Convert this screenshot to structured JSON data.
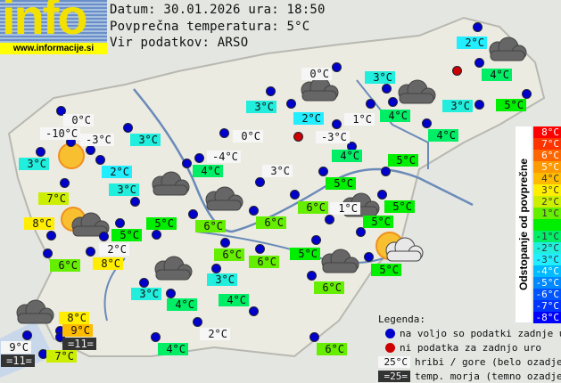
{
  "header": {
    "logo_text": "info",
    "url": "www.informacije.si",
    "date_line": "Datum: 30.01.2026 ura: 18:50",
    "avg_line": "Povprečna temperatura: 5°C",
    "source_line": "Vir podatkov: ARSO"
  },
  "average_temperature": 5,
  "colors": {
    "mountain_bg": "#f6f6f6",
    "sea_bg": "#333333",
    "dot_ok": "#0000cc",
    "dot_missing": "#cc0000"
  },
  "stations": [
    {
      "t": "2°C",
      "k": "v"
    },
    {
      "t": "4°C",
      "k": "v"
    },
    {
      "t": "5°C",
      "k": "v"
    },
    {
      "t": "3°C",
      "k": "v"
    },
    {
      "t": "0°C",
      "k": "m"
    },
    {
      "t": "3°C",
      "k": "v"
    },
    {
      "t": "4°C",
      "k": "v"
    },
    {
      "t": "1°C",
      "k": "m"
    },
    {
      "t": "2°C",
      "k": "v"
    },
    {
      "t": "3°C",
      "k": "v"
    },
    {
      "t": "-3°C",
      "k": "m"
    },
    {
      "t": "4°C",
      "k": "v"
    },
    {
      "t": "4°C",
      "k": "v"
    },
    {
      "t": "5°C",
      "k": "v"
    },
    {
      "t": "5°C",
      "k": "v"
    },
    {
      "t": "6°C",
      "k": "v"
    },
    {
      "t": "5°C",
      "k": "v"
    },
    {
      "t": "1°C",
      "k": "m"
    },
    {
      "t": "5°C",
      "k": "v"
    },
    {
      "t": "3°C",
      "k": "m"
    },
    {
      "t": "6°C",
      "k": "v"
    },
    {
      "t": "5°C",
      "k": "v"
    },
    {
      "t": "6°C",
      "k": "v"
    },
    {
      "t": "5°C",
      "k": "v"
    },
    {
      "t": "6°C",
      "k": "v"
    },
    {
      "t": "0°C",
      "k": "m"
    },
    {
      "t": "-10°C",
      "k": "m"
    },
    {
      "t": "-3°C",
      "k": "m"
    },
    {
      "t": "2°C",
      "k": "v"
    },
    {
      "t": "3°C",
      "k": "v"
    },
    {
      "t": "3°C",
      "k": "v"
    },
    {
      "t": "0°C",
      "k": "m"
    },
    {
      "t": "-4°C",
      "k": "m"
    },
    {
      "t": "4°C",
      "k": "v"
    },
    {
      "t": "7°C",
      "k": "v"
    },
    {
      "t": "3°C",
      "k": "v"
    },
    {
      "t": "6°C",
      "k": "v"
    },
    {
      "t": "8°C",
      "k": "v"
    },
    {
      "t": "5°C",
      "k": "v"
    },
    {
      "t": "5°C",
      "k": "v"
    },
    {
      "t": "2°C",
      "k": "m"
    },
    {
      "t": "6°C",
      "k": "v"
    },
    {
      "t": "6°C",
      "k": "v"
    },
    {
      "t": "8°C",
      "k": "v"
    },
    {
      "t": "3°C",
      "k": "v"
    },
    {
      "t": "3°C",
      "k": "v"
    },
    {
      "t": "4°C",
      "k": "v"
    },
    {
      "t": "4°C",
      "k": "v"
    },
    {
      "t": "2°C",
      "k": "m"
    },
    {
      "t": "4°C",
      "k": "v"
    },
    {
      "t": "6°C",
      "k": "v"
    },
    {
      "t": "8°C",
      "k": "v"
    },
    {
      "t": "9°C",
      "k": "v"
    },
    {
      "t": "=11=",
      "k": "s"
    },
    {
      "t": "9°C",
      "k": "m"
    },
    {
      "t": "=11=",
      "k": "s"
    },
    {
      "t": "7°C",
      "k": "v"
    }
  ],
  "scale": {
    "title": "Odstopanje od povprečne temperature:",
    "steps": [
      {
        "label": "8°C",
        "color": "#ff0000"
      },
      {
        "label": "7°C",
        "color": "#ff3300"
      },
      {
        "label": "6°C",
        "color": "#ff6600"
      },
      {
        "label": "5°C",
        "color": "#ff9900"
      },
      {
        "label": "4°C",
        "color": "#ffbb00"
      },
      {
        "label": "3°C",
        "color": "#ffee00"
      },
      {
        "label": "2°C",
        "color": "#ccee00"
      },
      {
        "label": "1°C",
        "color": "#66ee00"
      },
      {
        "label": "",
        "color": "#00ee00"
      },
      {
        "label": "-1°C",
        "color": "#00ee66"
      },
      {
        "label": "-2°C",
        "color": "#22eedd"
      },
      {
        "label": "-3°C",
        "color": "#22eeff"
      },
      {
        "label": "-4°C",
        "color": "#00bbff"
      },
      {
        "label": "-5°C",
        "color": "#0088ff"
      },
      {
        "label": "-6°C",
        "color": "#0055ff"
      },
      {
        "label": "-7°C",
        "color": "#0033ff"
      },
      {
        "label": "-8°C",
        "color": "#0000ff"
      }
    ]
  },
  "legend": {
    "title": "Legenda:",
    "ok": "na voljo so podatki zadnje ure",
    "missing": "ni podatka za zadnjo uro",
    "mountain_sample": "25°C",
    "mountain_text": "hribi / gore (belo ozadje)",
    "sea_sample": "=25=",
    "sea_text": "temp. morja (temno ozadje)"
  }
}
